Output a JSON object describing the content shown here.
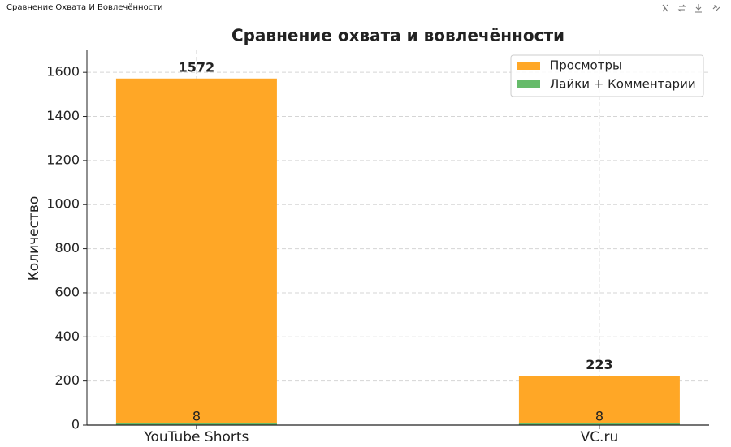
{
  "header": {
    "title": "Сравнение Охвата И Вовлечённости"
  },
  "chart_data": {
    "type": "bar",
    "title": "Сравнение охвата и вовлечённости",
    "ylabel": "Количество",
    "categories": [
      "YouTube Shorts",
      "VC.ru"
    ],
    "series": [
      {
        "name": "Просмотры",
        "color": "#ffa726",
        "values": [
          1572,
          223
        ]
      },
      {
        "name": "Лайки + Комментарии",
        "color": "#66bb6a",
        "values": [
          8,
          8
        ]
      }
    ],
    "ylim": [
      0,
      1700
    ],
    "yticks": [
      0,
      200,
      400,
      600,
      800,
      1000,
      1200,
      1400,
      1600
    ],
    "grid": true,
    "legend": "upper right"
  }
}
